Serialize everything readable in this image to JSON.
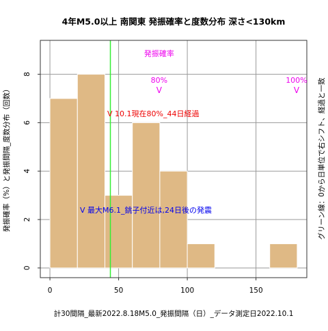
{
  "chart_data": {
    "type": "bar",
    "title": "4年M5.0以上 南関東 発振確率と度数分布 深さ<130km",
    "xlabel": "計30間隔_最新2022.8.18M5.0_発振間隔（日）_データ測定日2022.10.1",
    "ylabel": "発振確率（%）と発振間隔_度数分布（回数）",
    "ylabel_right": "グリーン線：0から日単位で右シフト、経過と一致",
    "xlim": [
      -7,
      187
    ],
    "ylim": [
      -0.4,
      9.4
    ],
    "x_ticks": [
      0,
      50,
      100,
      150
    ],
    "y_ticks": [
      0,
      2,
      4,
      6,
      8
    ],
    "x_tick_labels": [
      "0",
      "50",
      "100",
      "150"
    ],
    "y_tick_labels": [
      "0",
      "2",
      "4",
      "6",
      "8"
    ],
    "grid": true,
    "bins": [
      {
        "start": 0,
        "end": 20,
        "count": 7
      },
      {
        "start": 20,
        "end": 40,
        "count": 8
      },
      {
        "start": 40,
        "end": 60,
        "count": 3
      },
      {
        "start": 60,
        "end": 80,
        "count": 6
      },
      {
        "start": 80,
        "end": 100,
        "count": 4
      },
      {
        "start": 100,
        "end": 120,
        "count": 1
      },
      {
        "start": 160,
        "end": 180,
        "count": 1
      }
    ],
    "bar_color": "#dfb985",
    "green_line_x": 44,
    "green_color": "#33ee33",
    "probability_label": "発振確率",
    "probability_markers": [
      {
        "x": 80,
        "label": "80%",
        "marker": "V"
      },
      {
        "x": 180,
        "label": "100%",
        "marker": "V"
      }
    ],
    "probability_color": "#ee00ee",
    "annotation_current": "V 10.1現在80%_44日経過",
    "annotation_current_color": "#ee0000",
    "annotation_max": "V 最大M6.1_銚子付近は,24日後の発震",
    "annotation_max_color": "#0000ee"
  }
}
